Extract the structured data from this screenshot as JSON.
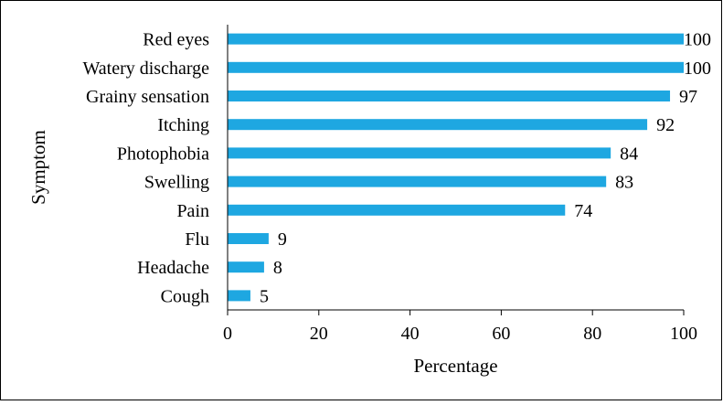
{
  "chart_data": {
    "type": "bar",
    "orientation": "horizontal",
    "categories": [
      "Red eyes",
      "Watery discharge",
      "Grainy sensation",
      "Itching",
      "Photophobia",
      "Swelling",
      "Pain",
      "Flu",
      "Headache",
      "Cough"
    ],
    "values": [
      100,
      100,
      97,
      92,
      84,
      83,
      74,
      9,
      8,
      5
    ],
    "xlabel": "Percentage",
    "ylabel": "Symptom",
    "xlim": [
      0,
      100
    ],
    "xticks": [
      0,
      20,
      40,
      60,
      80,
      100
    ],
    "grid": false,
    "legend": "none",
    "bar_color": "#1ea7e1"
  }
}
